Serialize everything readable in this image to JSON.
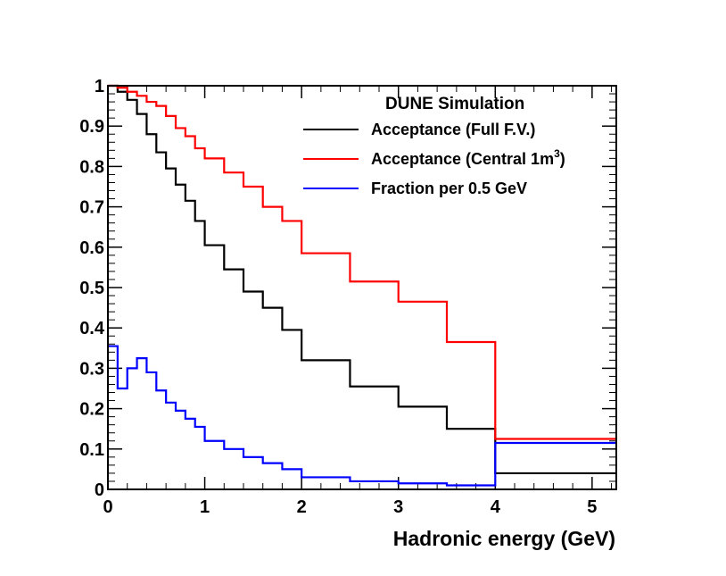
{
  "chart_data": {
    "type": "line",
    "title": "",
    "xlabel": "Hadronic energy (GeV)",
    "ylabel": "",
    "xlim": [
      0,
      5.25
    ],
    "ylim": [
      0,
      1
    ],
    "x_ticks": [
      0,
      1,
      2,
      3,
      4,
      5
    ],
    "y_ticks": [
      0,
      0.1,
      0.2,
      0.3,
      0.4,
      0.5,
      0.6,
      0.7,
      0.8,
      0.9,
      1
    ],
    "x_tick_labels": [
      "0",
      "1",
      "2",
      "3",
      "4",
      "5"
    ],
    "y_tick_labels": [
      "0",
      "0.1",
      "0.2",
      "0.3",
      "0.4",
      "0.5",
      "0.6",
      "0.7",
      "0.8",
      "0.9",
      "1"
    ],
    "legend": {
      "header": "DUNE Simulation",
      "placement": "top-right"
    },
    "series": [
      {
        "name": "Acceptance (Full F.V.)",
        "color": "#000000",
        "bin_edges": [
          0,
          0.1,
          0.2,
          0.3,
          0.4,
          0.5,
          0.6,
          0.7,
          0.8,
          0.9,
          1.0,
          1.2,
          1.4,
          1.6,
          1.8,
          2.0,
          2.5,
          3.0,
          3.5,
          4.0,
          5.0,
          5.25
        ],
        "values": [
          1.0,
          0.985,
          0.965,
          0.93,
          0.88,
          0.835,
          0.795,
          0.755,
          0.715,
          0.665,
          0.605,
          0.545,
          0.49,
          0.45,
          0.395,
          0.32,
          0.255,
          0.205,
          0.15,
          0.04,
          0.04
        ]
      },
      {
        "name": "Acceptance (Central 1m",
        "name_sup": "3",
        "name_suffix": ")",
        "color": "#ff0000",
        "bin_edges": [
          0,
          0.1,
          0.2,
          0.3,
          0.4,
          0.5,
          0.6,
          0.7,
          0.8,
          0.9,
          1.0,
          1.2,
          1.4,
          1.6,
          1.8,
          2.0,
          2.5,
          3.0,
          3.5,
          4.0,
          5.0,
          5.25
        ],
        "values": [
          1.0,
          0.995,
          0.985,
          0.975,
          0.96,
          0.95,
          0.925,
          0.895,
          0.875,
          0.845,
          0.82,
          0.785,
          0.75,
          0.7,
          0.665,
          0.585,
          0.515,
          0.465,
          0.365,
          0.125,
          0.125
        ]
      },
      {
        "name": "Fraction per 0.5 GeV",
        "color": "#0000ff",
        "bin_edges": [
          0,
          0.1,
          0.2,
          0.3,
          0.4,
          0.5,
          0.6,
          0.7,
          0.8,
          0.9,
          1.0,
          1.2,
          1.4,
          1.6,
          1.8,
          2.0,
          2.5,
          3.0,
          3.5,
          4.0,
          5.0,
          5.25
        ],
        "values": [
          0.355,
          0.25,
          0.3,
          0.325,
          0.29,
          0.245,
          0.215,
          0.195,
          0.175,
          0.155,
          0.12,
          0.1,
          0.08,
          0.065,
          0.05,
          0.03,
          0.02,
          0.015,
          0.01,
          0.115,
          0.115
        ]
      }
    ]
  }
}
